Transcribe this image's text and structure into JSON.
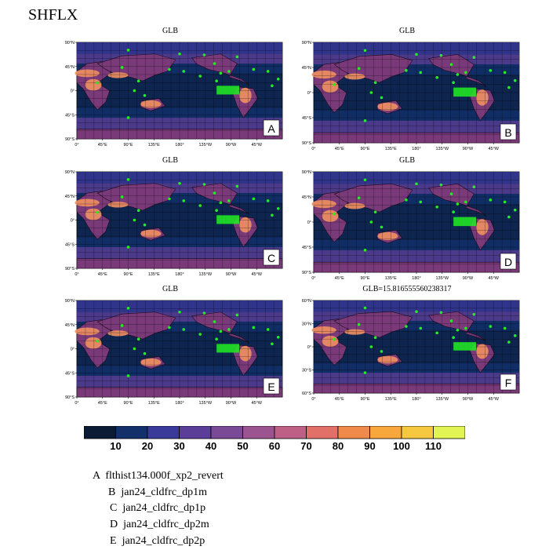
{
  "title": "SHFLX",
  "colors": [
    "#0b1b33",
    "#13306a",
    "#3a3a9a",
    "#5b3e98",
    "#7a4a96",
    "#9c5490",
    "#be5f86",
    "#e07068",
    "#f08a4a",
    "#f7a73c",
    "#f5c840",
    "#e2f354"
  ],
  "marker_color": "#22ee22",
  "map_background": "#0e2550",
  "land_color": "#7a3a7a",
  "hot_color": "#f09060",
  "chart_data": [
    {
      "type": "map",
      "panel": "A",
      "title": "GLB",
      "label": "A",
      "yticks": [
        "90°N",
        "45°N",
        "0°",
        "45°S",
        "90°S"
      ],
      "xticks": [
        "0°",
        "45°E",
        "90°E",
        "135°E",
        "180°",
        "135°W",
        "90°W",
        "45°W"
      ]
    },
    {
      "type": "map",
      "panel": "B",
      "title": "GLB",
      "label": "B",
      "yticks": [
        "90°N",
        "45°N",
        "0°",
        "45°S",
        "90°S"
      ],
      "xticks": [
        "0°",
        "45°E",
        "90°E",
        "135°E",
        "180°",
        "135°W",
        "90°W",
        "45°W"
      ]
    },
    {
      "type": "map",
      "panel": "C",
      "title": "GLB",
      "label": "C",
      "yticks": [
        "90°N",
        "45°N",
        "0°",
        "45°S",
        "90°S"
      ],
      "xticks": [
        "0°",
        "45°E",
        "90°E",
        "135°E",
        "180°",
        "135°W",
        "90°W",
        "45°W"
      ]
    },
    {
      "type": "map",
      "panel": "D",
      "title": "GLB",
      "label": "D",
      "yticks": [
        "90°N",
        "45°N",
        "0°",
        "45°S",
        "90°S"
      ],
      "xticks": [
        "0°",
        "45°E",
        "90°E",
        "135°E",
        "180°",
        "135°W",
        "90°W",
        "45°W"
      ]
    },
    {
      "type": "map",
      "panel": "E",
      "title": "GLB",
      "label": "E",
      "yticks": [
        "90°N",
        "45°N",
        "0°",
        "45°S",
        "90°S"
      ],
      "xticks": [
        "0°",
        "45°E",
        "90°E",
        "135°E",
        "180°",
        "135°W",
        "90°W",
        "45°W"
      ]
    },
    {
      "type": "map",
      "panel": "F",
      "title": "GLB=15.816555560238317",
      "label": "F",
      "yticks": [
        "60°N",
        "30°N",
        "0°",
        "30°S",
        "60°S"
      ],
      "xticks": [
        "0°",
        "45°E",
        "90°E",
        "135°E",
        "180°",
        "135°W",
        "90°W",
        "45°W"
      ]
    }
  ],
  "colorbar": {
    "labels": [
      "10",
      "20",
      "30",
      "40",
      "50",
      "60",
      "70",
      "80",
      "90",
      "100",
      "110"
    ]
  },
  "legend": [
    {
      "letter": "A",
      "name": "flthist134.000f_xp2_revert"
    },
    {
      "letter": "B",
      "name": "jan24_cldfrc_dp1m"
    },
    {
      "letter": "C",
      "name": "jan24_cldfrc_dp1p"
    },
    {
      "letter": "D",
      "name": "jan24_cldfrc_dp2m"
    },
    {
      "letter": "E",
      "name": "jan24_cldfrc_dp2p"
    }
  ]
}
